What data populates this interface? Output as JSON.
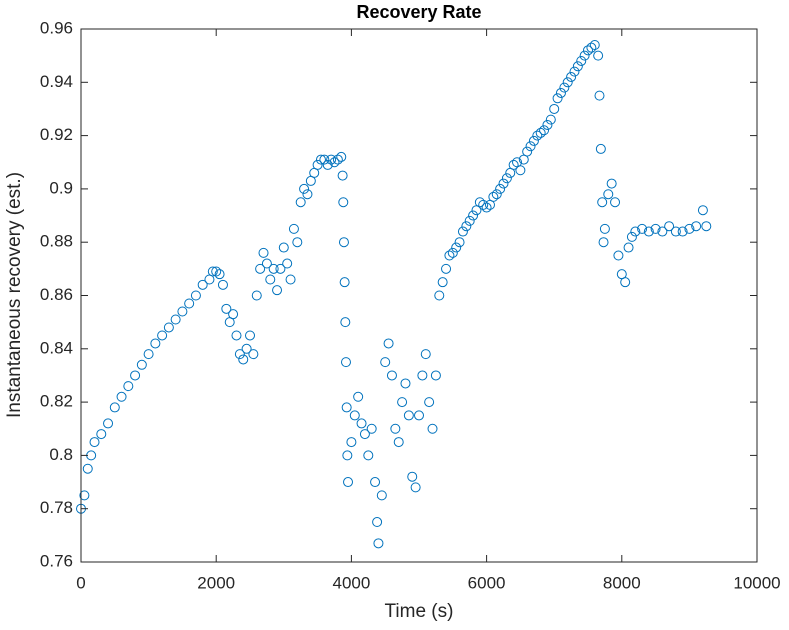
{
  "chart_data": {
    "type": "scatter",
    "title": "Recovery Rate",
    "xlabel": "Time (s)",
    "ylabel": "Instantaneous recovery (est.)",
    "color": "#0072bd",
    "marker": "circle",
    "xlim": [
      0,
      10000
    ],
    "xticks": [
      0,
      2000,
      4000,
      6000,
      8000,
      10000
    ],
    "ylim": [
      0.76,
      0.96
    ],
    "yticks": [
      0.76,
      0.78,
      0.8,
      0.82,
      0.84,
      0.86,
      0.88,
      0.9,
      0.92,
      0.94,
      0.96
    ],
    "x": [
      0,
      50,
      100,
      150,
      200,
      300,
      400,
      500,
      600,
      700,
      800,
      900,
      1000,
      1100,
      1200,
      1300,
      1400,
      1500,
      1600,
      1700,
      1800,
      1900,
      1950,
      2000,
      2050,
      2100,
      2150,
      2200,
      2250,
      2300,
      2350,
      2400,
      2450,
      2500,
      2550,
      2600,
      2650,
      2700,
      2750,
      2800,
      2850,
      2900,
      2950,
      3000,
      3050,
      3100,
      3150,
      3200,
      3250,
      3300,
      3350,
      3400,
      3450,
      3500,
      3550,
      3600,
      3650,
      3700,
      3750,
      3800,
      3850,
      3870,
      3880,
      3890,
      3900,
      3910,
      3920,
      3930,
      3940,
      3950,
      4000,
      4050,
      4100,
      4150,
      4200,
      4250,
      4300,
      4350,
      4380,
      4400,
      4450,
      4500,
      4550,
      4600,
      4650,
      4700,
      4750,
      4800,
      4850,
      4900,
      4950,
      5000,
      5050,
      5100,
      5150,
      5200,
      5250,
      5300,
      5350,
      5400,
      5450,
      5500,
      5550,
      5600,
      5650,
      5700,
      5750,
      5800,
      5850,
      5900,
      5950,
      6000,
      6050,
      6100,
      6150,
      6200,
      6250,
      6300,
      6350,
      6400,
      6450,
      6500,
      6550,
      6600,
      6650,
      6700,
      6750,
      6800,
      6850,
      6900,
      6950,
      7000,
      7050,
      7100,
      7150,
      7200,
      7250,
      7300,
      7350,
      7400,
      7450,
      7500,
      7550,
      7600,
      7650,
      7670,
      7690,
      7710,
      7730,
      7750,
      7800,
      7850,
      7900,
      7950,
      8000,
      8050,
      8100,
      8150,
      8200,
      8300,
      8400,
      8500,
      8600,
      8700,
      8800,
      8900,
      9000,
      9100,
      9200,
      9250
    ],
    "values": [
      0.78,
      0.785,
      0.795,
      0.8,
      0.805,
      0.808,
      0.812,
      0.818,
      0.822,
      0.826,
      0.83,
      0.834,
      0.838,
      0.842,
      0.845,
      0.848,
      0.851,
      0.854,
      0.857,
      0.86,
      0.864,
      0.866,
      0.869,
      0.869,
      0.868,
      0.864,
      0.855,
      0.85,
      0.853,
      0.845,
      0.838,
      0.836,
      0.84,
      0.845,
      0.838,
      0.86,
      0.87,
      0.876,
      0.872,
      0.866,
      0.87,
      0.862,
      0.87,
      0.878,
      0.872,
      0.866,
      0.885,
      0.88,
      0.895,
      0.9,
      0.898,
      0.903,
      0.906,
      0.909,
      0.911,
      0.911,
      0.909,
      0.911,
      0.91,
      0.911,
      0.912,
      0.905,
      0.895,
      0.88,
      0.865,
      0.85,
      0.835,
      0.818,
      0.8,
      0.79,
      0.805,
      0.815,
      0.822,
      0.812,
      0.808,
      0.8,
      0.81,
      0.79,
      0.775,
      0.767,
      0.785,
      0.835,
      0.842,
      0.83,
      0.81,
      0.805,
      0.82,
      0.827,
      0.815,
      0.792,
      0.788,
      0.815,
      0.83,
      0.838,
      0.82,
      0.81,
      0.83,
      0.86,
      0.865,
      0.87,
      0.875,
      0.876,
      0.878,
      0.88,
      0.884,
      0.886,
      0.888,
      0.89,
      0.892,
      0.895,
      0.894,
      0.893,
      0.894,
      0.897,
      0.898,
      0.9,
      0.902,
      0.904,
      0.906,
      0.909,
      0.91,
      0.907,
      0.911,
      0.914,
      0.916,
      0.918,
      0.92,
      0.921,
      0.922,
      0.924,
      0.926,
      0.93,
      0.934,
      0.936,
      0.938,
      0.94,
      0.942,
      0.944,
      0.946,
      0.948,
      0.95,
      0.952,
      0.953,
      0.954,
      0.95,
      0.935,
      0.915,
      0.895,
      0.88,
      0.885,
      0.898,
      0.902,
      0.895,
      0.875,
      0.868,
      0.865,
      0.878,
      0.882,
      0.884,
      0.885,
      0.884,
      0.885,
      0.884,
      0.886,
      0.884,
      0.884,
      0.885,
      0.886,
      0.892,
      0.886
    ]
  }
}
